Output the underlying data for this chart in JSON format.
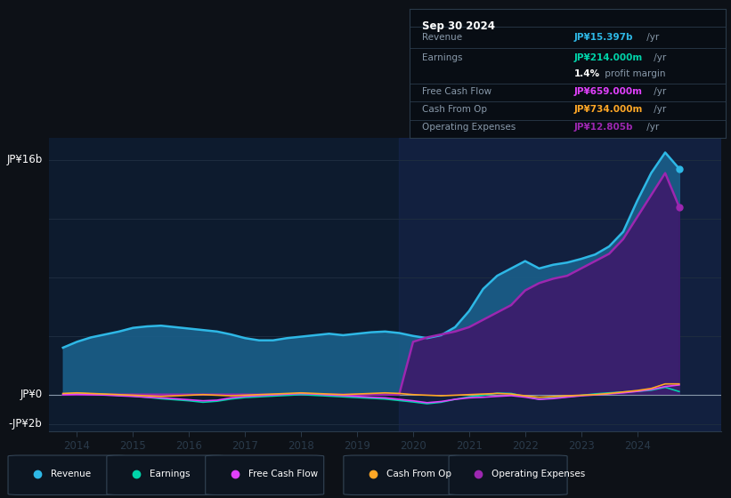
{
  "bg_color": "#0d1117",
  "plot_bg_color": "#0d1b2e",
  "ylabel_top": "JP¥16b",
  "ylabel_zero": "JP¥0",
  "ylabel_bottom": "-JP¥2b",
  "x_years": [
    2013.75,
    2014.0,
    2014.25,
    2014.5,
    2014.75,
    2015.0,
    2015.25,
    2015.5,
    2015.75,
    2016.0,
    2016.25,
    2016.5,
    2016.75,
    2017.0,
    2017.25,
    2017.5,
    2017.75,
    2018.0,
    2018.25,
    2018.5,
    2018.75,
    2019.0,
    2019.25,
    2019.5,
    2019.75,
    2020.0,
    2020.25,
    2020.5,
    2020.75,
    2021.0,
    2021.25,
    2021.5,
    2021.75,
    2022.0,
    2022.25,
    2022.5,
    2022.75,
    2023.0,
    2023.25,
    2023.5,
    2023.75,
    2024.0,
    2024.25,
    2024.5,
    2024.75
  ],
  "revenue": [
    3.2,
    3.6,
    3.9,
    4.1,
    4.3,
    4.55,
    4.65,
    4.7,
    4.6,
    4.5,
    4.4,
    4.3,
    4.1,
    3.85,
    3.7,
    3.7,
    3.85,
    3.95,
    4.05,
    4.15,
    4.05,
    4.15,
    4.25,
    4.3,
    4.2,
    4.0,
    3.85,
    4.05,
    4.6,
    5.7,
    7.2,
    8.1,
    8.6,
    9.1,
    8.6,
    8.85,
    9.0,
    9.25,
    9.55,
    10.1,
    11.1,
    13.2,
    15.1,
    16.5,
    15.4
  ],
  "earnings": [
    0.05,
    0.1,
    0.05,
    0.02,
    -0.05,
    -0.1,
    -0.18,
    -0.28,
    -0.35,
    -0.42,
    -0.52,
    -0.45,
    -0.3,
    -0.2,
    -0.15,
    -0.1,
    -0.05,
    0.0,
    -0.05,
    -0.1,
    -0.15,
    -0.2,
    -0.25,
    -0.3,
    -0.4,
    -0.5,
    -0.62,
    -0.52,
    -0.32,
    -0.15,
    -0.05,
    0.1,
    0.08,
    -0.12,
    -0.32,
    -0.22,
    -0.15,
    -0.05,
    0.05,
    0.12,
    0.18,
    0.22,
    0.3,
    0.5,
    0.21
  ],
  "free_cash_flow": [
    0.0,
    0.03,
    0.0,
    -0.03,
    -0.08,
    -0.12,
    -0.18,
    -0.22,
    -0.28,
    -0.35,
    -0.42,
    -0.38,
    -0.22,
    -0.12,
    -0.07,
    -0.02,
    0.03,
    0.08,
    0.04,
    -0.02,
    -0.07,
    -0.12,
    -0.18,
    -0.22,
    -0.32,
    -0.42,
    -0.55,
    -0.47,
    -0.32,
    -0.22,
    -0.18,
    -0.12,
    -0.07,
    -0.17,
    -0.32,
    -0.27,
    -0.17,
    -0.08,
    -0.02,
    0.05,
    0.12,
    0.22,
    0.35,
    0.55,
    0.66
  ],
  "cash_from_op": [
    0.08,
    0.12,
    0.08,
    0.04,
    0.0,
    -0.04,
    -0.08,
    -0.12,
    -0.08,
    -0.04,
    0.0,
    -0.04,
    -0.08,
    -0.04,
    0.0,
    0.04,
    0.08,
    0.12,
    0.08,
    0.04,
    0.0,
    0.04,
    0.08,
    0.12,
    0.08,
    0.0,
    -0.04,
    -0.08,
    -0.04,
    0.0,
    0.04,
    0.08,
    0.04,
    -0.08,
    -0.18,
    -0.13,
    -0.08,
    -0.04,
    0.0,
    0.08,
    0.18,
    0.28,
    0.42,
    0.73,
    0.73
  ],
  "op_expenses": [
    0.0,
    0.0,
    0.0,
    0.0,
    0.0,
    0.0,
    0.0,
    0.0,
    0.0,
    0.0,
    0.0,
    0.0,
    0.0,
    0.0,
    0.0,
    0.0,
    0.0,
    0.0,
    0.0,
    0.0,
    0.0,
    0.0,
    0.0,
    0.0,
    0.0,
    3.6,
    3.9,
    4.1,
    4.3,
    4.6,
    5.1,
    5.6,
    6.1,
    7.1,
    7.6,
    7.9,
    8.1,
    8.6,
    9.1,
    9.6,
    10.6,
    12.1,
    13.6,
    15.1,
    12.8
  ],
  "ylim": [
    -2.5,
    17.5
  ],
  "xlim": [
    2013.5,
    2025.5
  ],
  "xticks": [
    2014,
    2015,
    2016,
    2017,
    2018,
    2019,
    2020,
    2021,
    2022,
    2023,
    2024
  ],
  "revenue_color": "#2eb8e6",
  "earnings_color": "#00d4aa",
  "fcf_color": "#e040fb",
  "cashop_color": "#ffa726",
  "opex_color": "#9c27b0",
  "revenue_fill": "#1a5f8a",
  "opex_fill": "#3d1a6b",
  "recent_shade": "#1a2a5a",
  "legend": [
    {
      "label": "Revenue",
      "color": "#2eb8e6"
    },
    {
      "label": "Earnings",
      "color": "#00d4aa"
    },
    {
      "label": "Free Cash Flow",
      "color": "#e040fb"
    },
    {
      "label": "Cash From Op",
      "color": "#ffa726"
    },
    {
      "label": "Operating Expenses",
      "color": "#9c27b0"
    }
  ],
  "info_title": "Sep 30 2024",
  "info_rows": [
    {
      "label": "Revenue",
      "value": "JP¥15.397b",
      "suffix": " /yr",
      "color": "#2eb8e6"
    },
    {
      "label": "Earnings",
      "value": "JP¥214.000m",
      "suffix": " /yr",
      "color": "#00d4aa"
    },
    {
      "label": "",
      "value": "1.4%",
      "suffix": " profit margin",
      "color": "#ffffff"
    },
    {
      "label": "Free Cash Flow",
      "value": "JP¥659.000m",
      "suffix": " /yr",
      "color": "#e040fb"
    },
    {
      "label": "Cash From Op",
      "value": "JP¥734.000m",
      "suffix": " /yr",
      "color": "#ffa726"
    },
    {
      "label": "Operating Expenses",
      "value": "JP¥12.805b",
      "suffix": " /yr",
      "color": "#9c27b0"
    }
  ]
}
